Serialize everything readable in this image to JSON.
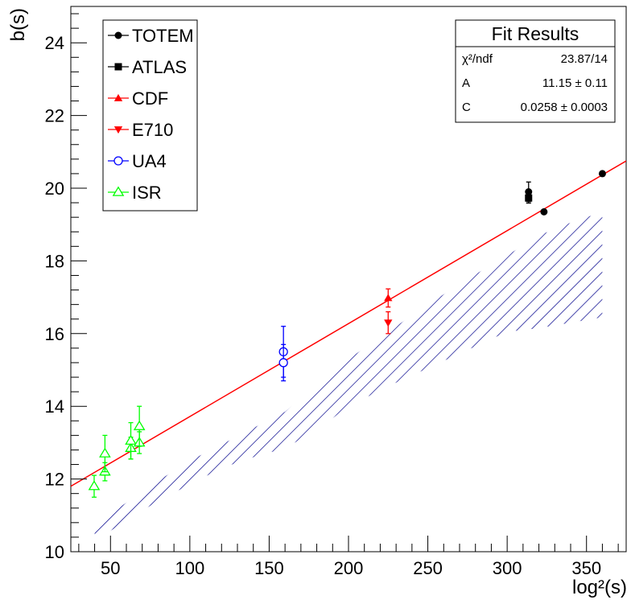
{
  "chart_data": {
    "type": "scatter",
    "title": "",
    "xlabel": "log²(s)",
    "ylabel": "b(s)",
    "xlim": [
      25,
      375
    ],
    "ylim": [
      10,
      25
    ],
    "x_ticks": [
      50,
      100,
      150,
      200,
      250,
      300,
      350
    ],
    "y_ticks": [
      10,
      12,
      14,
      16,
      18,
      20,
      22,
      24
    ],
    "grid": false,
    "legend_position": "top-left",
    "series": [
      {
        "name": "TOTEM",
        "color": "#000000",
        "marker": "filled-circle",
        "points": [
          {
            "x": 313.5,
            "y": 19.9,
            "err": 0.27
          },
          {
            "x": 323.2,
            "y": 19.35,
            "err": 0.0
          },
          {
            "x": 360.0,
            "y": 20.4,
            "err": 0.0
          }
        ]
      },
      {
        "name": "ATLAS",
        "color": "#000000",
        "marker": "filled-square",
        "points": [
          {
            "x": 313.5,
            "y": 19.73,
            "err": 0.14
          }
        ]
      },
      {
        "name": "CDF",
        "color": "#ff0000",
        "marker": "filled-triangle-up",
        "points": [
          {
            "x": 159.0,
            "y": 15.22,
            "err": 0.0
          },
          {
            "x": 225.0,
            "y": 16.98,
            "err": 0.25
          }
        ]
      },
      {
        "name": "E710",
        "color": "#ff0000",
        "marker": "filled-triangle-down",
        "points": [
          {
            "x": 225.0,
            "y": 16.3,
            "err": 0.3
          }
        ]
      },
      {
        "name": "UA4",
        "color": "#0000ff",
        "marker": "open-circle",
        "points": [
          {
            "x": 159.0,
            "y": 15.5,
            "err": 0.7
          },
          {
            "x": 159.0,
            "y": 15.2,
            "err": 0.5
          }
        ]
      },
      {
        "name": "ISR",
        "color": "#00ff00",
        "marker": "open-triangle-up",
        "points": [
          {
            "x": 39.7,
            "y": 11.8,
            "err": 0.3
          },
          {
            "x": 46.5,
            "y": 12.2,
            "err": 0.25
          },
          {
            "x": 46.5,
            "y": 12.7,
            "err": 0.5
          },
          {
            "x": 62.8,
            "y": 12.85,
            "err": 0.3
          },
          {
            "x": 62.8,
            "y": 13.05,
            "err": 0.5
          },
          {
            "x": 68.2,
            "y": 13.0,
            "err": 0.3
          },
          {
            "x": 68.2,
            "y": 13.45,
            "err": 0.55
          }
        ]
      }
    ],
    "fit_line": {
      "color": "#ff0000",
      "from": {
        "x": 25,
        "y": 11.8
      },
      "to": {
        "x": 375,
        "y": 20.75
      }
    },
    "band": {
      "color": "#00008b",
      "pattern": "diagonal hatch",
      "x": [
        40,
        60,
        80,
        100,
        120,
        140,
        160,
        180,
        200,
        225,
        250,
        275,
        300,
        320,
        340,
        360
      ],
      "upper": [
        10.75,
        11.35,
        11.95,
        12.5,
        12.95,
        13.4,
        13.85,
        14.6,
        15.3,
        16.05,
        16.8,
        17.5,
        18.15,
        18.7,
        19.05,
        19.35
      ],
      "lower": [
        10.3,
        10.85,
        11.4,
        11.85,
        12.3,
        12.6,
        12.85,
        13.35,
        14.0,
        14.55,
        15.05,
        15.55,
        16.05,
        16.15,
        16.3,
        16.45
      ]
    },
    "fit_results": {
      "title": "Fit Results",
      "rows": [
        {
          "label": "χ²/ndf",
          "value": "23.87/14"
        },
        {
          "label": "A",
          "value": "11.15 ± 0.11"
        },
        {
          "label": "C",
          "value": "0.0258 ± 0.0003"
        }
      ]
    }
  }
}
